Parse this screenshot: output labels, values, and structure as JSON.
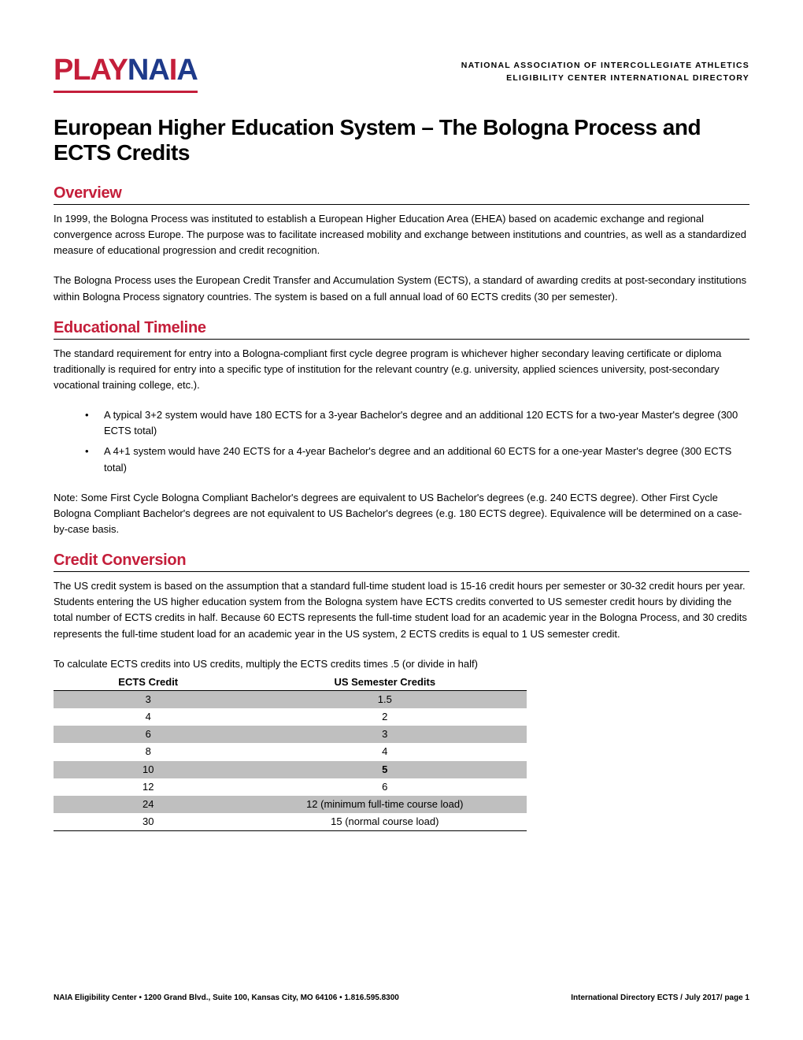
{
  "header": {
    "logo_play": "PLAY",
    "logo_n": "N",
    "logo_a1": "A",
    "logo_i": "I",
    "logo_a2": "A",
    "line1": "NATIONAL ASSOCIATION OF INTERCOLLEGIATE ATHLETICS",
    "line2": "ELIGIBILITY CENTER INTERNATIONAL DIRECTORY"
  },
  "title": "European Higher Education System – The Bologna Process and ECTS Credits",
  "sections": {
    "overview": {
      "heading": "Overview",
      "para1": "In 1999, the Bologna Process was instituted to establish a European Higher Education Area (EHEA) based on academic exchange and regional convergence across Europe. The purpose was to facilitate increased mobility and exchange between institutions and countries, as well as a standardized measure of educational progression and credit recognition.",
      "para2": "The Bologna Process uses the European Credit Transfer and Accumulation System (ECTS), a standard of awarding credits at post-secondary institutions within Bologna Process signatory countries. The system is based on a full annual load of 60 ECTS credits (30 per semester)."
    },
    "timeline": {
      "heading": "Educational Timeline",
      "para1": "The standard requirement for entry into a Bologna-compliant first cycle degree program is whichever higher secondary leaving certificate or diploma traditionally is required for entry into a specific type of institution for the relevant country (e.g. university, applied sciences university, post-secondary vocational training college, etc.).",
      "bullets": [
        "A typical 3+2 system would have 180 ECTS for a 3-year Bachelor's degree and an additional 120 ECTS for a two-year Master's degree (300 ECTS total)",
        "A 4+1 system would have 240 ECTS for a 4-year Bachelor's degree and an additional 60 ECTS for a one-year Master's degree (300 ECTS total)"
      ],
      "note": "Note: Some First Cycle Bologna Compliant Bachelor's degrees are equivalent to US Bachelor's degrees (e.g. 240 ECTS degree). Other First Cycle Bologna Compliant Bachelor's degrees are not equivalent to US Bachelor's degrees (e.g. 180 ECTS degree). Equivalence will be determined on a case-by-case basis."
    },
    "conversion": {
      "heading": "Credit Conversion",
      "para1": "The US credit system is based on the assumption that a standard full-time student load is 15-16 credit hours per semester or 30-32 credit hours per year. Students entering the US higher education system from the Bologna system have ECTS credits converted to US semester credit hours by dividing the total number of ECTS credits in half. Because 60 ECTS represents the full-time student load for an academic year in the Bologna Process, and 30 credits represents the full-time student load for an academic year in the US system, 2 ECTS credits is equal to 1 US semester credit.",
      "caption": "To calculate ECTS credits into US credits, multiply the ECTS credits times .5 (or divide in half)"
    }
  },
  "conversion_table": {
    "columns": [
      "ECTS Credit",
      "US Semester Credits"
    ],
    "rows": [
      {
        "ects": "3",
        "us": "1.5",
        "shade": "odd",
        "bold_us": false
      },
      {
        "ects": "4",
        "us": "2",
        "shade": "even",
        "bold_us": false
      },
      {
        "ects": "6",
        "us": "3",
        "shade": "odd",
        "bold_us": false
      },
      {
        "ects": "8",
        "us": "4",
        "shade": "even",
        "bold_us": false
      },
      {
        "ects": "10",
        "us": "5",
        "shade": "odd",
        "bold_us": true
      },
      {
        "ects": "12",
        "us": "6",
        "shade": "even",
        "bold_us": false
      },
      {
        "ects": "24",
        "us": "12 (minimum full-time course load)",
        "shade": "odd",
        "bold_us": false
      },
      {
        "ects": "30",
        "us": "15 (normal course load)",
        "shade": "even",
        "bold_us": false
      }
    ],
    "header_bg": "#ffffff",
    "odd_row_bg": "#bfbfbf",
    "even_row_bg": "#ffffff",
    "border_color": "#000000"
  },
  "footer": {
    "left": "NAIA Eligibility Center • 1200 Grand Blvd., Suite 100, Kansas City, MO 64106 • 1.816.595.8300",
    "right": "International Directory ECTS / July 2017/ page 1"
  },
  "colors": {
    "red": "#c41e3a",
    "blue": "#1e3a8a",
    "black": "#000000",
    "grey": "#bfbfbf",
    "white": "#ffffff"
  }
}
